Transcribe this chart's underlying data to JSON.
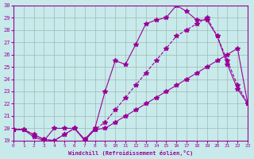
{
  "xlabel": "Windchill (Refroidissement éolien,°C)",
  "background_color": "#c8eaea",
  "grid_color": "#a0b8b8",
  "line_color": "#990099",
  "xlim": [
    0,
    23
  ],
  "ylim": [
    19,
    30
  ],
  "xticks": [
    0,
    1,
    2,
    3,
    4,
    5,
    6,
    7,
    8,
    9,
    10,
    11,
    12,
    13,
    14,
    15,
    16,
    17,
    18,
    19,
    20,
    21,
    22,
    23
  ],
  "yticks": [
    19,
    20,
    21,
    22,
    23,
    24,
    25,
    26,
    27,
    28,
    29,
    30
  ],
  "line1_x": [
    0,
    1,
    2,
    3,
    4,
    5,
    6,
    7,
    8,
    9,
    10,
    11,
    12,
    13,
    14,
    15,
    16,
    17,
    18,
    19,
    20,
    21,
    22,
    23
  ],
  "line1_y": [
    19.9,
    19.9,
    19.5,
    19.1,
    19.0,
    19.5,
    20.0,
    19.1,
    20.0,
    23.0,
    25.5,
    25.2,
    26.8,
    28.5,
    28.8,
    29.0,
    30.0,
    29.5,
    28.8,
    28.8,
    27.5,
    25.2,
    23.2,
    22.0
  ],
  "line2_x": [
    0,
    1,
    2,
    3,
    4,
    5,
    6,
    7,
    8,
    9,
    10,
    11,
    12,
    13,
    14,
    15,
    16,
    17,
    18,
    19,
    20,
    21,
    22,
    23
  ],
  "line2_y": [
    19.9,
    19.9,
    19.5,
    19.1,
    19.0,
    19.5,
    20.0,
    19.1,
    19.9,
    20.5,
    21.5,
    22.5,
    23.5,
    24.5,
    25.5,
    26.5,
    27.5,
    28.0,
    28.5,
    29.0,
    27.5,
    25.5,
    23.5,
    22.0
  ],
  "line3_x": [
    0,
    1,
    2,
    3,
    4,
    5,
    6,
    7,
    8,
    9,
    10,
    11,
    12,
    13,
    14,
    15,
    16,
    17,
    18,
    19,
    20,
    21,
    22,
    23
  ],
  "line3_y": [
    19.9,
    19.9,
    19.3,
    19.0,
    20.0,
    20.0,
    20.0,
    19.0,
    19.9,
    20.0,
    20.5,
    21.0,
    21.5,
    22.0,
    22.5,
    23.0,
    23.5,
    24.0,
    24.5,
    25.0,
    25.5,
    26.0,
    26.5,
    22.0
  ]
}
